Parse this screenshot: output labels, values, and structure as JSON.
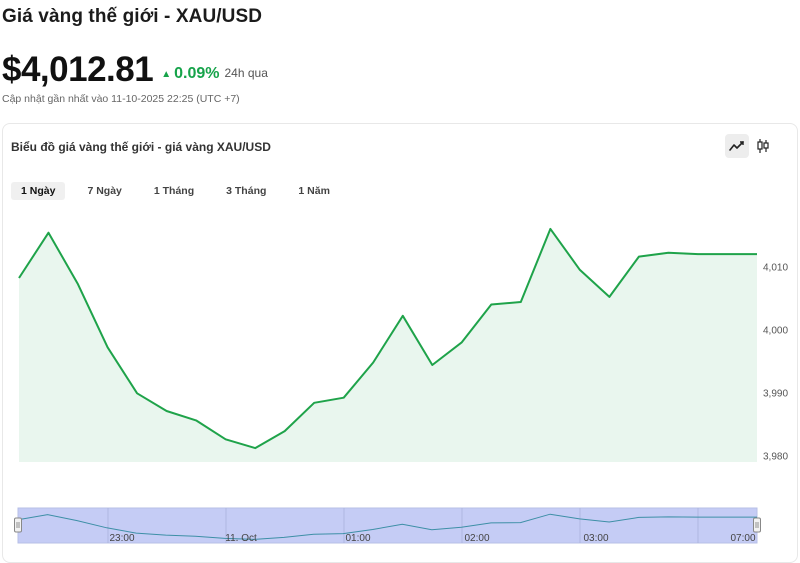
{
  "header": {
    "title": "Giá vàng thế giới - XAU/USD",
    "price": "$4,012.81",
    "change_percent": "0.09%",
    "change_period": "24h qua",
    "updated": "Cập nhật gần nhất vào 11-10-2025 22:25 (UTC +7)"
  },
  "card": {
    "title": "Biểu đồ giá vàng thế giới - giá vàng XAU/USD",
    "chart_types": [
      {
        "name": "line",
        "icon": "line-chart-icon",
        "active": true
      },
      {
        "name": "candlestick",
        "icon": "candlestick-icon",
        "active": false
      }
    ],
    "range_tabs": [
      {
        "label": "1 Ngày",
        "active": true
      },
      {
        "label": "7 Ngày",
        "active": false
      },
      {
        "label": "1 Tháng",
        "active": false
      },
      {
        "label": "3 Tháng",
        "active": false
      },
      {
        "label": "1 Năm",
        "active": false
      }
    ]
  },
  "colors": {
    "line": "#1fa34a",
    "area": "#e9f6ee",
    "navigator_fill": "#c5ccf5",
    "navigator_line": "#3d8fa6"
  },
  "chart_data": {
    "type": "area",
    "title": "",
    "y_ticks": [
      "4,010",
      "4,000",
      "3,990",
      "3,980"
    ],
    "y_tick_values": [
      4010,
      4000,
      3990,
      3980
    ],
    "ylim": [
      3979,
      4019
    ],
    "grid": false,
    "values": [
      4008.2,
      4015.4,
      4007.2,
      3997.2,
      3989.9,
      3987.1,
      3985.6,
      3982.6,
      3981.2,
      3983.9,
      3988.4,
      3989.2,
      3994.8,
      4002.2,
      3994.4,
      3998.0,
      4004.0,
      4004.4,
      4016.0,
      4009.5,
      4005.2,
      4011.6,
      4012.2,
      4012.0,
      4012.0,
      4012.0
    ],
    "navigator": {
      "x_labels": [
        "23:00",
        "11. Oct",
        "01:00",
        "02:00",
        "03:00",
        "07:00"
      ],
      "range": "full"
    }
  }
}
